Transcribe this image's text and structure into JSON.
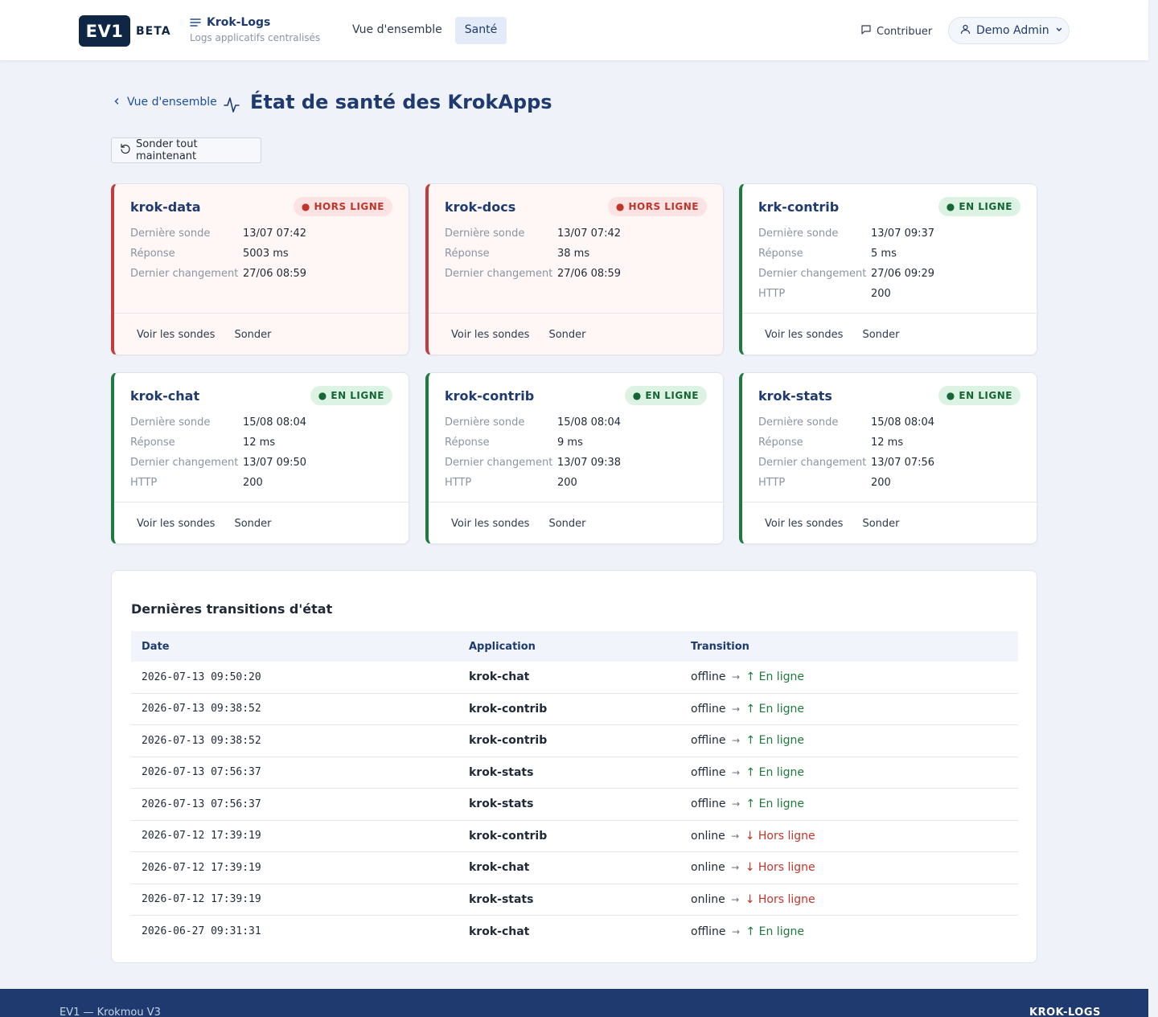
{
  "header": {
    "logo": "EV1",
    "beta": "BETA",
    "app_name": "Krok-Logs",
    "app_subtitle": "Logs applicatifs centralisés",
    "nav": [
      {
        "label": "Vue d'ensemble",
        "active": false
      },
      {
        "label": "Santé",
        "active": true
      }
    ],
    "contribute": "Contribuer",
    "user": "Demo Admin"
  },
  "page": {
    "back_label": "Vue d'ensemble",
    "title": "État de santé des KrokApps",
    "probe_all": "Sonder tout maintenant"
  },
  "labels": {
    "last_probe": "Dernière sonde",
    "response": "Réponse",
    "last_change": "Dernier changement",
    "http": "HTTP",
    "view_probes": "Voir les sondes",
    "probe": "Sonder"
  },
  "apps": [
    {
      "name": "krok-data",
      "status": "offline",
      "badge": "● HORS LIGNE",
      "last_probe": "13/07 07:42",
      "response": "5003 ms",
      "last_change": "27/06 08:59",
      "http": null
    },
    {
      "name": "krok-docs",
      "status": "offline",
      "badge": "● HORS LIGNE",
      "last_probe": "13/07 07:42",
      "response": "38 ms",
      "last_change": "27/06 08:59",
      "http": null
    },
    {
      "name": "krk-contrib",
      "status": "online",
      "badge": "● EN LIGNE",
      "last_probe": "13/07 09:37",
      "response": "5 ms",
      "last_change": "27/06 09:29",
      "http": "200"
    },
    {
      "name": "krok-chat",
      "status": "online",
      "badge": "● EN LIGNE",
      "last_probe": "15/08 08:04",
      "response": "12 ms",
      "last_change": "13/07 09:50",
      "http": "200"
    },
    {
      "name": "krok-contrib",
      "status": "online",
      "badge": "● EN LIGNE",
      "last_probe": "15/08 08:04",
      "response": "9 ms",
      "last_change": "13/07 09:38",
      "http": "200"
    },
    {
      "name": "krok-stats",
      "status": "online",
      "badge": "● EN LIGNE",
      "last_probe": "15/08 08:04",
      "response": "12 ms",
      "last_change": "13/07 07:56",
      "http": "200"
    }
  ],
  "transitions": {
    "title": "Dernières transitions d'état",
    "columns": [
      "Date",
      "Application",
      "Transition"
    ],
    "arrow": "→",
    "rows": [
      {
        "date": "2026-07-13 09:50:20",
        "app": "krok-chat",
        "from": "offline",
        "to": "↑ En ligne",
        "to_status": "online"
      },
      {
        "date": "2026-07-13 09:38:52",
        "app": "krok-contrib",
        "from": "offline",
        "to": "↑ En ligne",
        "to_status": "online"
      },
      {
        "date": "2026-07-13 09:38:52",
        "app": "krok-contrib",
        "from": "offline",
        "to": "↑ En ligne",
        "to_status": "online"
      },
      {
        "date": "2026-07-13 07:56:37",
        "app": "krok-stats",
        "from": "offline",
        "to": "↑ En ligne",
        "to_status": "online"
      },
      {
        "date": "2026-07-13 07:56:37",
        "app": "krok-stats",
        "from": "offline",
        "to": "↑ En ligne",
        "to_status": "online"
      },
      {
        "date": "2026-07-12 17:39:19",
        "app": "krok-contrib",
        "from": "online",
        "to": "↓ Hors ligne",
        "to_status": "offline"
      },
      {
        "date": "2026-07-12 17:39:19",
        "app": "krok-chat",
        "from": "online",
        "to": "↓ Hors ligne",
        "to_status": "offline"
      },
      {
        "date": "2026-07-12 17:39:19",
        "app": "krok-stats",
        "from": "online",
        "to": "↓ Hors ligne",
        "to_status": "offline"
      },
      {
        "date": "2026-06-27 09:31:31",
        "app": "krok-chat",
        "from": "offline",
        "to": "↑ En ligne",
        "to_status": "online"
      }
    ]
  },
  "footer": {
    "left": "EV1 — Krokmou V3",
    "right": "KROK-LOGS"
  }
}
